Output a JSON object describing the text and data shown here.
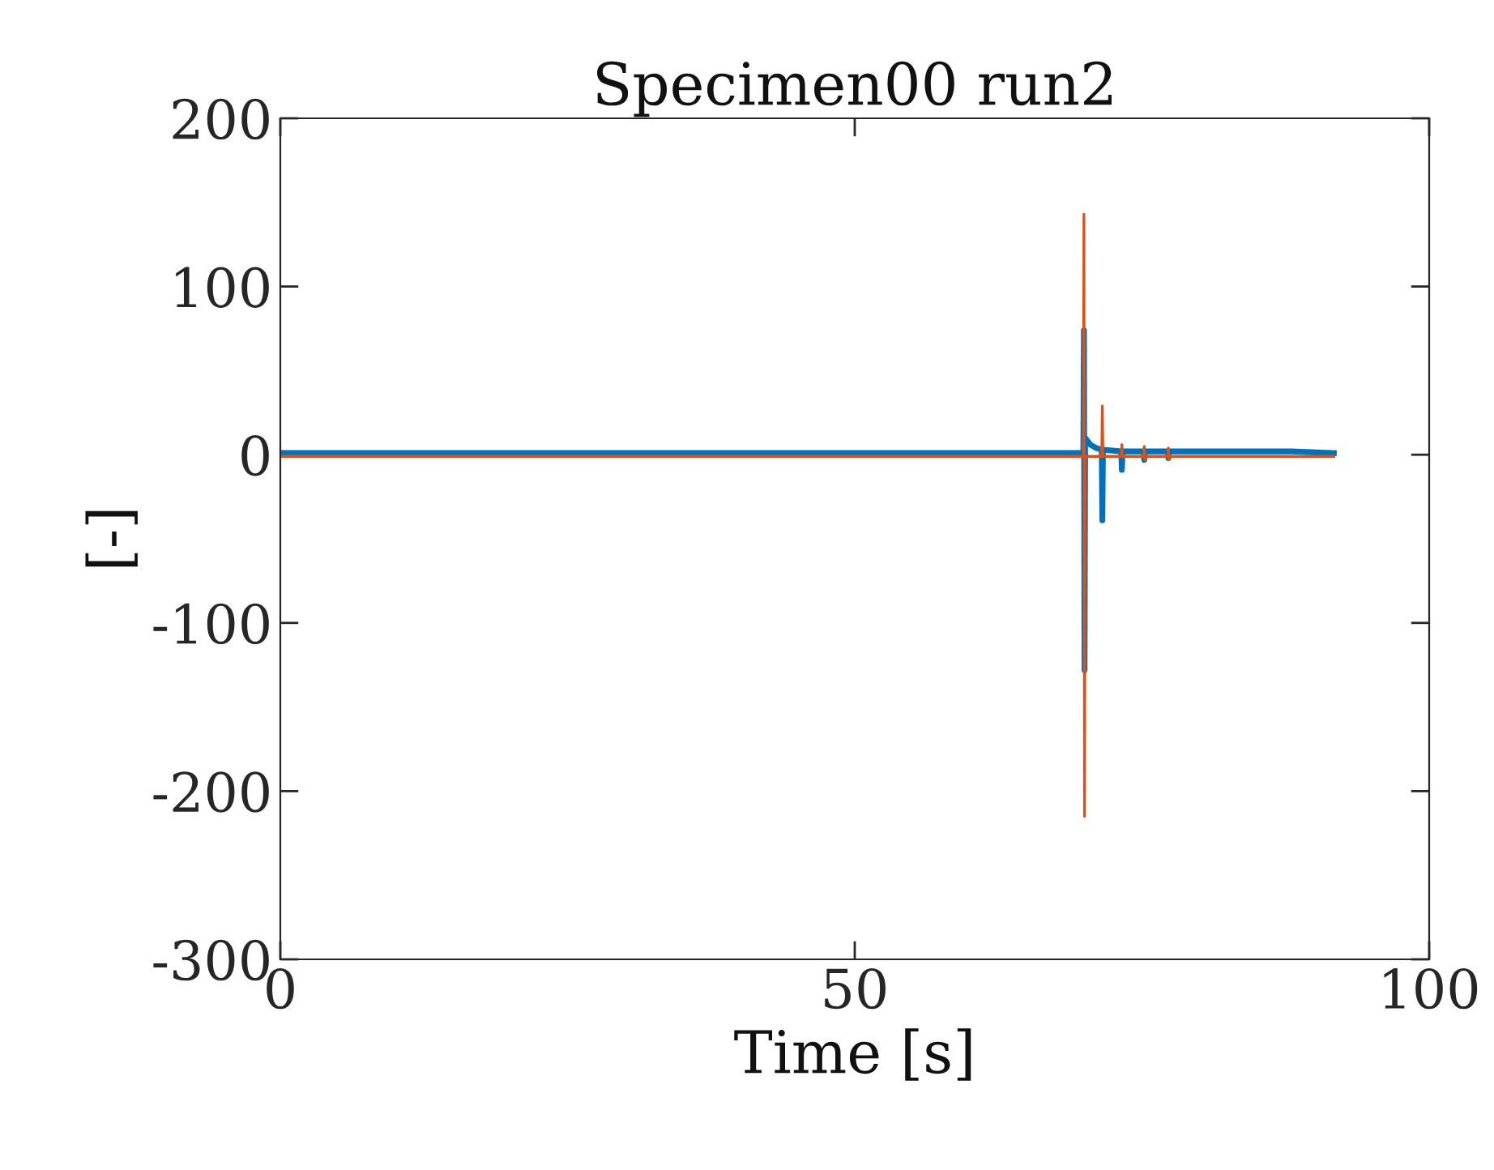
{
  "chart_data": {
    "type": "line",
    "title": "Specimen00 run2",
    "xlabel": "Time [s]",
    "ylabel": "[-]",
    "xlim": [
      0,
      100
    ],
    "xticks": [
      0,
      50,
      100
    ],
    "ylim": [
      -300,
      200
    ],
    "yticks": [
      -300,
      -200,
      -100,
      0,
      100,
      200
    ],
    "grid": false,
    "series": [
      {
        "color": "#0072bd",
        "x": [
          0,
          69.9,
          69.95,
          70.0,
          70.05,
          70.5,
          71,
          71.5,
          71.55,
          71.6,
          73.2,
          73.25,
          73.3,
          75.15,
          75.2,
          75.25,
          77.25,
          77.3,
          77.35,
          80,
          88,
          91.7
        ],
        "values": [
          1,
          1,
          74,
          -128,
          10,
          6,
          4,
          3,
          -39,
          3,
          2,
          -9,
          2,
          2,
          -3,
          2,
          2,
          -2,
          2,
          2,
          2,
          1
        ]
      },
      {
        "color": "#d95319",
        "x": [
          0,
          69.9,
          69.95,
          70.0,
          70.05,
          71.5,
          71.55,
          71.6,
          73.2,
          73.25,
          73.3,
          75.15,
          75.2,
          75.25,
          75.3,
          77.25,
          77.3,
          77.35,
          77.4,
          91.7
        ],
        "values": [
          -1,
          -1,
          143,
          -215,
          -1,
          -1,
          29,
          -1,
          -1,
          6,
          -1,
          -1,
          5,
          -3,
          -1,
          -1,
          4,
          -3,
          -1,
          -1
        ]
      }
    ]
  }
}
